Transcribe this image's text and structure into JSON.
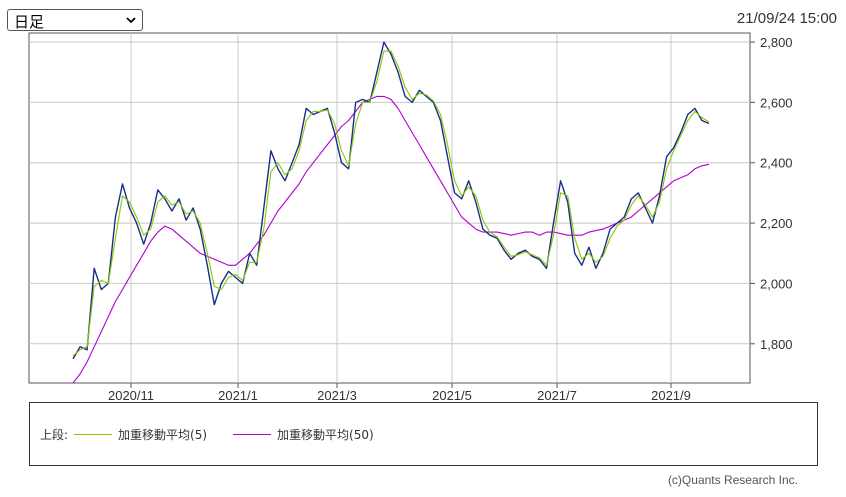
{
  "period_select": {
    "value": "日足",
    "icon": "chevron-down-icon"
  },
  "timestamp": "21/09/24 15:00",
  "legend": {
    "prefix": "上段:",
    "items": [
      {
        "label": "加重移動平均(5)",
        "color": "#88c800"
      },
      {
        "label": "加重移動平均(50)",
        "color": "#b000d0"
      }
    ]
  },
  "copyright": "(c)Quants Research Inc.",
  "chart_data": {
    "type": "line",
    "y_ticks": [
      1800,
      2000,
      2200,
      2400,
      2600,
      2800
    ],
    "y_tick_labels": [
      "1,800",
      "2,000",
      "2,200",
      "2,400",
      "2,600",
      "2,800"
    ],
    "ylim": [
      1670,
      2830
    ],
    "x_tick_labels": [
      "2020/11",
      "2021/1",
      "2021/3",
      "2021/5",
      "2021/7",
      "2021/9"
    ],
    "grid": true,
    "series": [
      {
        "name": "",
        "color": "#1a2e8c",
        "values": [
          1750,
          1790,
          1780,
          2050,
          1980,
          2000,
          2220,
          2330,
          2250,
          2200,
          2130,
          2200,
          2310,
          2280,
          2240,
          2280,
          2210,
          2250,
          2180,
          2060,
          1930,
          2000,
          2040,
          2020,
          2000,
          2100,
          2060,
          2250,
          2440,
          2380,
          2340,
          2400,
          2460,
          2580,
          2560,
          2570,
          2580,
          2500,
          2400,
          2380,
          2600,
          2610,
          2600,
          2700,
          2800,
          2760,
          2700,
          2620,
          2600,
          2640,
          2620,
          2600,
          2540,
          2420,
          2300,
          2280,
          2340,
          2270,
          2180,
          2160,
          2150,
          2110,
          2080,
          2100,
          2110,
          2090,
          2080,
          2050,
          2200,
          2340,
          2270,
          2100,
          2060,
          2120,
          2050,
          2100,
          2180,
          2200,
          2220,
          2280,
          2300,
          2250,
          2200,
          2290,
          2420,
          2450,
          2500,
          2560,
          2580,
          2540,
          2530
        ]
      },
      {
        "name": "加重移動平均(5)",
        "color": "#88c800",
        "values": [
          1760,
          1780,
          1790,
          1990,
          2010,
          2000,
          2150,
          2290,
          2270,
          2220,
          2160,
          2180,
          2270,
          2290,
          2260,
          2270,
          2230,
          2240,
          2200,
          2100,
          1990,
          1980,
          2020,
          2030,
          2010,
          2070,
          2070,
          2180,
          2370,
          2400,
          2360,
          2380,
          2440,
          2540,
          2570,
          2570,
          2575,
          2530,
          2440,
          2390,
          2530,
          2600,
          2600,
          2670,
          2770,
          2770,
          2720,
          2650,
          2610,
          2630,
          2625,
          2605,
          2560,
          2460,
          2340,
          2290,
          2320,
          2290,
          2210,
          2170,
          2155,
          2120,
          2090,
          2095,
          2105,
          2095,
          2085,
          2060,
          2160,
          2300,
          2290,
          2150,
          2080,
          2100,
          2070,
          2090,
          2150,
          2190,
          2210,
          2260,
          2290,
          2260,
          2220,
          2270,
          2380,
          2440,
          2490,
          2540,
          2570,
          2550,
          2535
        ]
      },
      {
        "name": "加重移動平均(50)",
        "color": "#b000d0",
        "values": [
          1670,
          1700,
          1740,
          1790,
          1840,
          1890,
          1940,
          1980,
          2020,
          2060,
          2100,
          2140,
          2170,
          2190,
          2180,
          2160,
          2140,
          2120,
          2100,
          2090,
          2080,
          2070,
          2060,
          2060,
          2080,
          2100,
          2130,
          2160,
          2200,
          2240,
          2270,
          2300,
          2330,
          2370,
          2400,
          2430,
          2460,
          2490,
          2520,
          2540,
          2570,
          2600,
          2610,
          2620,
          2620,
          2610,
          2580,
          2540,
          2500,
          2460,
          2420,
          2380,
          2340,
          2300,
          2260,
          2220,
          2200,
          2180,
          2170,
          2170,
          2170,
          2165,
          2160,
          2165,
          2170,
          2170,
          2160,
          2170,
          2170,
          2165,
          2160,
          2160,
          2160,
          2170,
          2175,
          2180,
          2190,
          2200,
          2210,
          2220,
          2240,
          2260,
          2280,
          2300,
          2320,
          2340,
          2350,
          2360,
          2380,
          2390,
          2395
        ]
      }
    ]
  }
}
